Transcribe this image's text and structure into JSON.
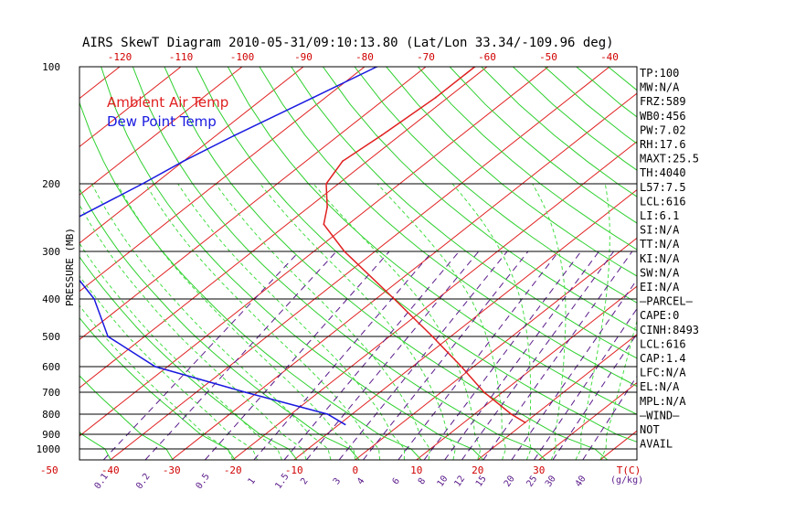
{
  "chart_data": {
    "type": "line",
    "title": "AIRS SkewT Diagram 2010-05-31/09:10:13.80 (Lat/Lon 33.34/-109.96 deg)",
    "ylabel": "PRESSURE (MB)",
    "pressure_ticks": [
      "100",
      "200",
      "300",
      "400",
      "500",
      "600",
      "700",
      "800",
      "900",
      "1000"
    ],
    "top_temp_ticks": [
      "-120",
      "-110",
      "-100",
      "-90",
      "-80",
      "-70",
      "-60",
      "-50",
      "-40"
    ],
    "bottom_temp_ticks": [
      "-50",
      "-40",
      "-30",
      "-20",
      "-10",
      "0",
      "10",
      "20",
      "30"
    ],
    "bottom_temp_unit": "T(C)",
    "mixing_ratio_ticks": [
      "0.1",
      "0.2",
      "0.5",
      "1",
      "1.5",
      "2",
      "3",
      "4",
      "6",
      "8",
      "10",
      "12",
      "15",
      "20",
      "25",
      "30",
      "40"
    ],
    "mixing_ratio_unit": "(g/kg)",
    "legend": [
      "Ambient Air Temp",
      "Dew Point Temp"
    ],
    "series": [
      {
        "name": "Ambient Air Temp",
        "color": "#e02020",
        "pressure": [
          100,
          120,
          150,
          175,
          200,
          230,
          255,
          300,
          400,
          500,
          600,
          700,
          800,
          840
        ],
        "temperature": [
          -62,
          -62,
          -63,
          -64,
          -62,
          -57,
          -54,
          -45,
          -27,
          -13,
          -2,
          7,
          16,
          20
        ]
      },
      {
        "name": "Dew Point Temp",
        "color": "#1a1ae0",
        "pressure": [
          100,
          120,
          150,
          175,
          200,
          250,
          300,
          400,
          500,
          600,
          700,
          800,
          850
        ],
        "temperature": [
          -78,
          -82,
          -87,
          -90,
          -92,
          -96,
          -92,
          -76,
          -66,
          -52,
          -32,
          -14,
          -9
        ]
      }
    ],
    "grid": true
  },
  "indices": [
    "TP:100",
    "MW:N/A",
    "FRZ:589",
    "WB0:456",
    "PW:7.02",
    "RH:17.6",
    "MAXT:25.5",
    "TH:4040",
    "L57:7.5",
    "LCL:616",
    "LI:6.1",
    "SI:N/A",
    "TT:N/A",
    "KI:N/A",
    "SW:N/A",
    "EI:N/A",
    "—PARCEL—",
    "CAPE:0",
    "CINH:8493",
    "LCL:616",
    "CAP:1.4",
    "LFC:N/A",
    "EL:N/A",
    "MPL:N/A",
    "—WIND—",
    "NOT",
    "AVAIL"
  ],
  "colors": {
    "isotherm": "#e02020",
    "dry_adiabat": "#2ed02e",
    "moist_adiabat": "#44dd44",
    "mixing_ratio": "#5a1a8a",
    "isobar": "#000000"
  }
}
